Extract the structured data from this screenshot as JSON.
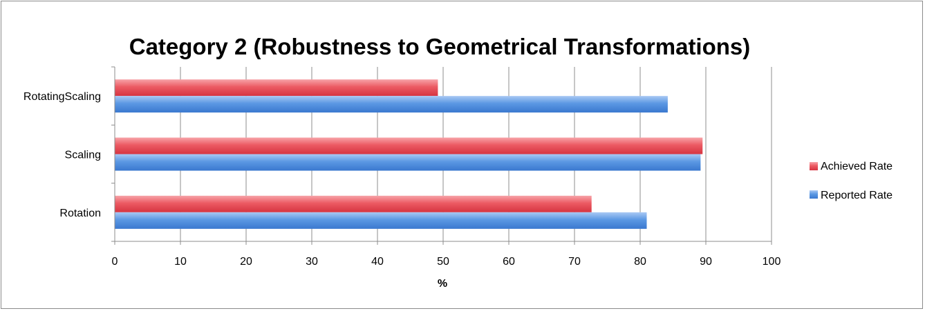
{
  "chart_data": {
    "type": "bar",
    "orientation": "horizontal",
    "title": "Category 2 (Robustness to Geometrical Transformations)",
    "xlabel": "%",
    "ylabel": "",
    "categories": [
      "Rotation",
      "Scaling",
      "RotatingScaling"
    ],
    "series": [
      {
        "name": "Achieved Rate",
        "values": [
          72.6,
          89.5,
          49.2
        ],
        "color": "#e8434f"
      },
      {
        "name": "Reported Rate",
        "values": [
          81.0,
          89.2,
          84.2
        ],
        "color": "#4f8fdf"
      }
    ],
    "xlim": [
      0,
      100
    ],
    "xticks": [
      0,
      10,
      20,
      30,
      40,
      50,
      60,
      70,
      80,
      90,
      100
    ],
    "grid": true,
    "legend_position": "right"
  }
}
